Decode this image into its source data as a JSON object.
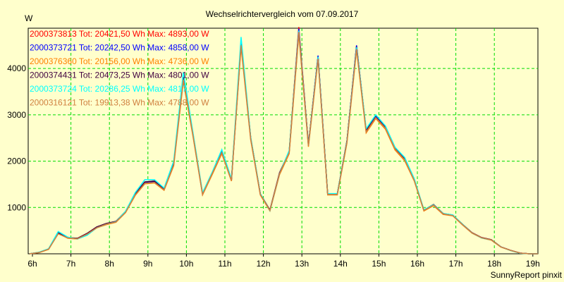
{
  "chart_data": {
    "type": "line",
    "title": "Wechselrichtervergleich vom 07.09.2017",
    "ylabel": "W",
    "xlabel": "",
    "ylim": [
      0,
      4870
    ],
    "xlim": [
      5.9,
      19.1
    ],
    "grid": true,
    "yticks": [
      1000,
      2000,
      3000,
      4000
    ],
    "ytick_labels": [
      "1000",
      "2000",
      "3000",
      "4000"
    ],
    "xticks": [
      6,
      7,
      8,
      9,
      10,
      11,
      12,
      13,
      14,
      15,
      16,
      17,
      18,
      19
    ],
    "xtick_labels": [
      "6h",
      "7h",
      "8h",
      "9h",
      "10h",
      "11h",
      "12h",
      "13h",
      "14h",
      "15h",
      "16h",
      "17h",
      "18h",
      "19h"
    ],
    "legend_position": "top-left",
    "x": [
      5.92,
      6.17,
      6.42,
      6.67,
      6.92,
      7.17,
      7.42,
      7.67,
      7.92,
      8.17,
      8.42,
      8.67,
      8.92,
      9.17,
      9.42,
      9.67,
      9.92,
      10.17,
      10.42,
      10.67,
      10.92,
      11.17,
      11.42,
      11.67,
      11.92,
      12.17,
      12.42,
      12.67,
      12.92,
      13.17,
      13.42,
      13.67,
      13.92,
      14.17,
      14.42,
      14.67,
      14.92,
      15.17,
      15.42,
      15.67,
      15.92,
      16.17,
      16.42,
      16.67,
      16.92,
      17.17,
      17.42,
      17.67,
      17.92,
      18.17,
      18.42,
      18.67,
      18.92,
      19.17
    ],
    "series": [
      {
        "name": "2000373813",
        "total": "Tot: 20421,50 Wh",
        "max": "Max: 4893,00 W",
        "color": "#ff0000",
        "values": [
          0,
          30,
          105,
          455,
          350,
          335,
          440,
          580,
          655,
          700,
          915,
          1295,
          1550,
          1570,
          1400,
          1950,
          3805,
          2590,
          1295,
          1750,
          2205,
          1600,
          4565,
          2510,
          1295,
          945,
          1750,
          2205,
          4893,
          2360,
          4260,
          1295,
          1295,
          2435,
          4490,
          2665,
          2970,
          2740,
          2285,
          2055,
          1600,
          945,
          1065,
          870,
          835,
          640,
          455,
          350,
          305,
          150,
          75,
          15,
          0,
          0
        ]
      },
      {
        "name": "2000373721",
        "total": "Tot: 20242,50 Wh",
        "max": "Max: 4858,00 W",
        "color": "#0000ff",
        "values": [
          0,
          30,
          100,
          450,
          345,
          330,
          430,
          575,
          650,
          690,
          905,
          1285,
          1545,
          1560,
          1390,
          1940,
          3800,
          2580,
          1290,
          1740,
          2195,
          1590,
          4550,
          2500,
          1290,
          940,
          1740,
          2195,
          4858,
          2350,
          4280,
          1290,
          1290,
          2430,
          4500,
          2650,
          2960,
          2730,
          2270,
          2040,
          1590,
          940,
          1060,
          865,
          830,
          635,
          450,
          345,
          300,
          150,
          75,
          15,
          0,
          0
        ]
      },
      {
        "name": "2000376360",
        "total": "Tot: 20156,00 Wh",
        "max": "Max: 4736,00 W",
        "color": "#ff8000",
        "values": [
          0,
          25,
          95,
          440,
          335,
          320,
          420,
          560,
          630,
          680,
          890,
          1260,
          1510,
          1530,
          1370,
          1900,
          3720,
          2540,
          1270,
          1710,
          2160,
          1570,
          4470,
          2460,
          1270,
          925,
          1710,
          2160,
          4736,
          2310,
          4200,
          1270,
          1270,
          2390,
          4400,
          2610,
          2920,
          2690,
          2240,
          2010,
          1570,
          925,
          1040,
          850,
          820,
          625,
          445,
          340,
          295,
          145,
          72,
          14,
          0,
          0
        ]
      },
      {
        "name": "2000374431",
        "total": "Tot: 20473,25 Wh",
        "max": "Max: 4801,00 W",
        "color": "#400040",
        "values": [
          0,
          30,
          105,
          455,
          350,
          335,
          440,
          580,
          655,
          700,
          915,
          1295,
          1550,
          1570,
          1400,
          1950,
          3790,
          2590,
          1295,
          1750,
          2205,
          1600,
          4540,
          2510,
          1295,
          945,
          1750,
          2205,
          4801,
          2360,
          4250,
          1295,
          1295,
          2435,
          4470,
          2665,
          2990,
          2740,
          2285,
          2055,
          1600,
          945,
          1065,
          870,
          835,
          640,
          455,
          350,
          305,
          150,
          75,
          15,
          0,
          0
        ]
      },
      {
        "name": "2000373724",
        "total": "Tot: 20286,25 Wh",
        "max": "Max: 4817,00 W",
        "color": "#00ffff",
        "values": [
          0,
          35,
          110,
          480,
          360,
          320,
          400,
          560,
          640,
          690,
          920,
          1320,
          1600,
          1600,
          1420,
          2000,
          3920,
          2620,
          1320,
          1760,
          2250,
          1620,
          4680,
          2520,
          1300,
          930,
          1730,
          2230,
          4817,
          2340,
          4250,
          1300,
          1300,
          2420,
          4460,
          2700,
          3000,
          2760,
          2300,
          2080,
          1620,
          950,
          1060,
          870,
          840,
          640,
          450,
          340,
          300,
          150,
          70,
          12,
          0,
          0
        ]
      },
      {
        "name": "2000316121",
        "total": "Tot: 19913,38 Wh",
        "max": "Max: 4788,00 W",
        "color": "#d08040",
        "values": [
          0,
          28,
          100,
          430,
          340,
          325,
          425,
          560,
          640,
          685,
          895,
          1270,
          1520,
          1540,
          1380,
          1920,
          3760,
          2560,
          1280,
          1730,
          2180,
          1580,
          4500,
          2480,
          1280,
          935,
          1730,
          2180,
          4788,
          2330,
          4210,
          1280,
          1280,
          2400,
          4420,
          2630,
          2940,
          2710,
          2260,
          2030,
          1580,
          935,
          1050,
          860,
          825,
          630,
          450,
          345,
          300,
          148,
          74,
          15,
          0,
          0
        ]
      }
    ]
  },
  "footer": "SunnyReport pinxit"
}
